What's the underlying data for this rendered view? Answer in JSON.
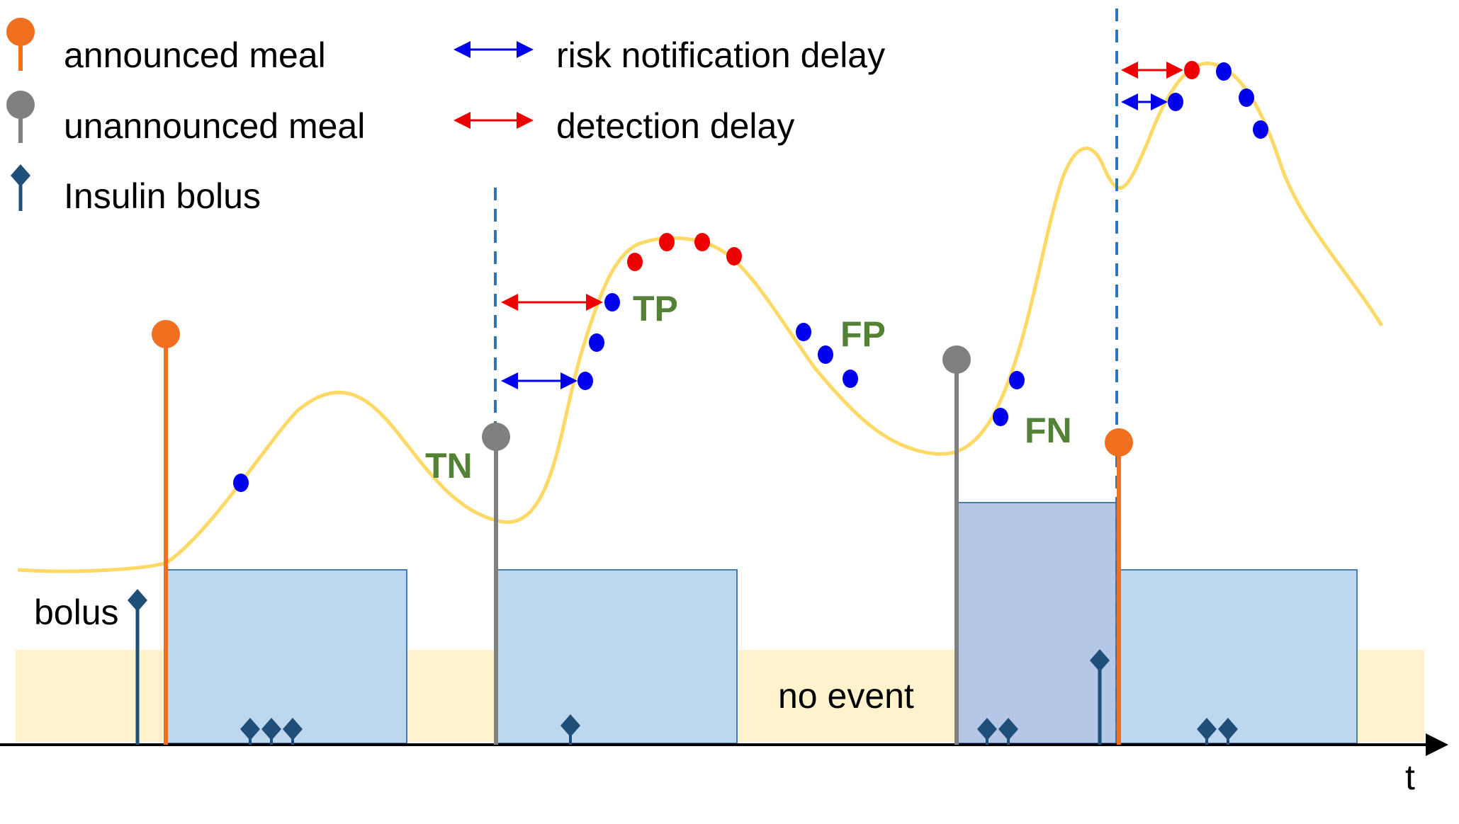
{
  "legend": {
    "announced_meal": "announced meal",
    "unannounced_meal": "unannounced meal",
    "insulin_bolus": "Insulin bolus",
    "risk_notification_delay": "risk notification delay",
    "detection_delay": "detection delay"
  },
  "labels": {
    "bolus": "bolus",
    "no_event": "no event",
    "time_axis": "t"
  },
  "outcomes": {
    "tn": "TN",
    "tp": "TP",
    "fp": "FP",
    "fn": "FN"
  },
  "colors": {
    "announced_meal": "#f07020",
    "unannounced_meal": "#808080",
    "insulin_bolus": "#1f4e79",
    "risk_notification_delay": "#0000ee",
    "detection_delay": "#ee0000",
    "glucose_curve": "#ffd966",
    "event_window": "#bdd7ee",
    "event_window_dark": "#b4c7e7",
    "no_event_band": "#fff2cc",
    "dashed_line": "#2e75b6",
    "outcome_text": "#548235"
  },
  "icons": {
    "announced_meal": "orange-lollipop-marker",
    "unannounced_meal": "gray-lollipop-marker",
    "insulin_bolus": "navy-diamond-stem-marker",
    "risk_notification_delay": "blue-double-arrow",
    "detection_delay": "red-double-arrow"
  }
}
